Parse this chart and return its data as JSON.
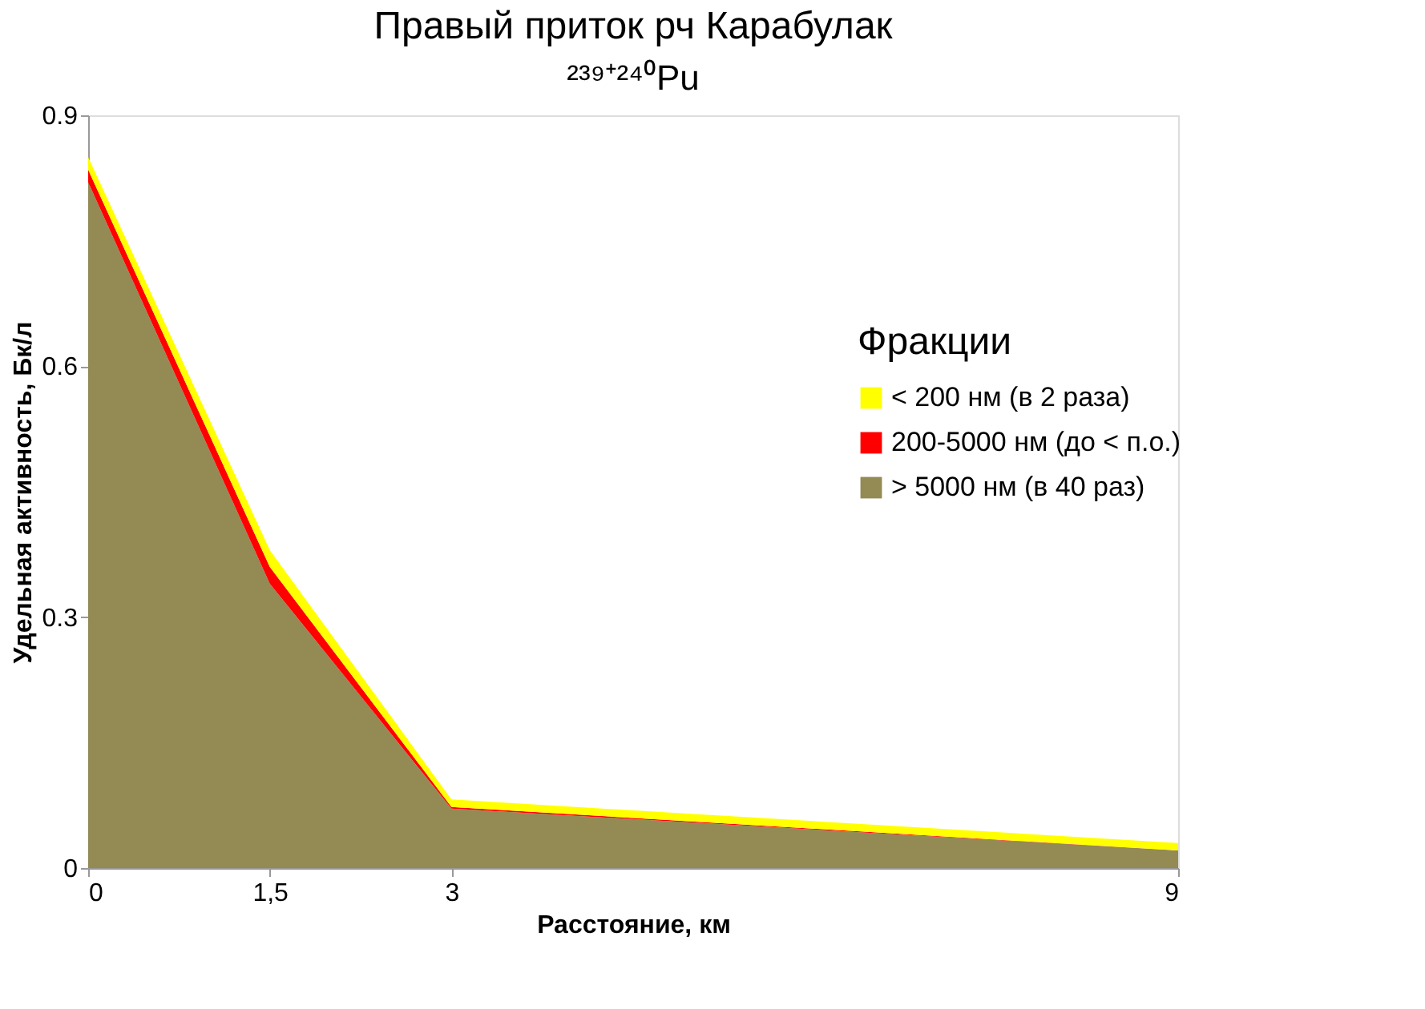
{
  "chart_data": {
    "type": "area",
    "title": "Правый приток рч Карабулак",
    "subtitle": "²³⁹⁺²⁴⁰Pu",
    "xlabel": "Расстояние, км",
    "ylabel": "Удельная активность, Бк/л",
    "legend_title": "Фракции",
    "x": [
      0,
      1.5,
      3,
      9
    ],
    "stacked": true,
    "series": [
      {
        "name": "> 5000 нм (в 40 раз)",
        "color": "#948a54",
        "values": [
          0.82,
          0.34,
          0.071,
          0.021
        ]
      },
      {
        "name": "200-5000 нм (до < п.о.)",
        "color": "#ff0000",
        "values": [
          0.015,
          0.02,
          0.002,
          0
        ]
      },
      {
        "name": "< 200 нм (в 2 раза)",
        "color": "#ffff00",
        "values": [
          0.015,
          0.02,
          0.009,
          0.009
        ]
      }
    ],
    "xlim": [
      0,
      9
    ],
    "xticks": [
      0,
      {
        "value": 1.5,
        "label": "1,5"
      },
      3,
      9
    ],
    "ylim": [
      0,
      0.9
    ],
    "yticks": [
      0,
      0.3,
      0.6,
      0.9
    ],
    "grid": false,
    "legend": "right"
  }
}
